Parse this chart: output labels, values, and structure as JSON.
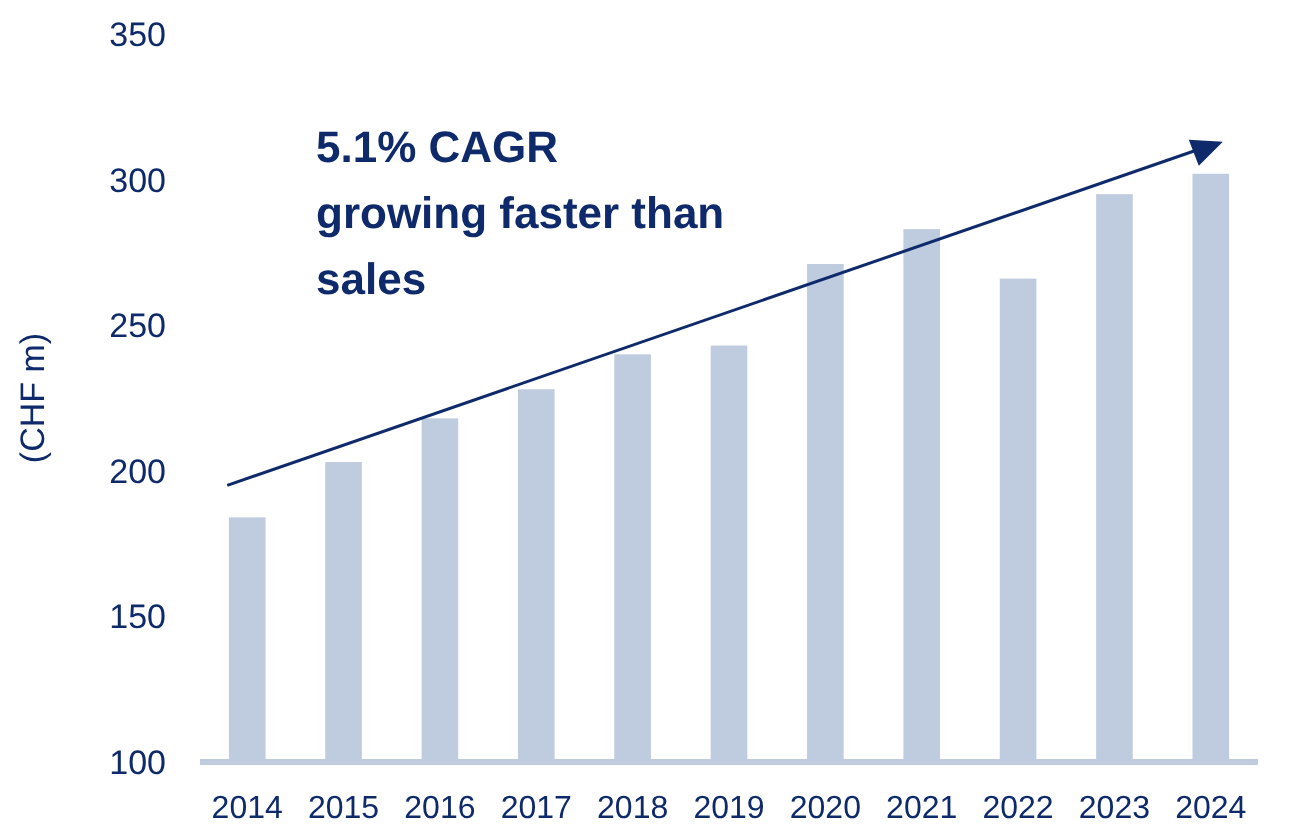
{
  "chart_data": {
    "type": "bar",
    "ylabel": "(CHF m)",
    "categories": [
      "2014",
      "2015",
      "2016",
      "2017",
      "2018",
      "2019",
      "2020",
      "2021",
      "2022",
      "2023",
      "2024"
    ],
    "values": [
      184,
      203,
      218,
      228,
      240,
      243,
      271,
      283,
      266,
      295,
      302
    ],
    "color": "#bfcbde",
    "ylim": [
      100,
      350
    ],
    "yticks": [
      100,
      150,
      200,
      250,
      300,
      350
    ],
    "grid": false,
    "annotations": [
      "5.1% CAGR",
      "growing faster than sales"
    ]
  }
}
